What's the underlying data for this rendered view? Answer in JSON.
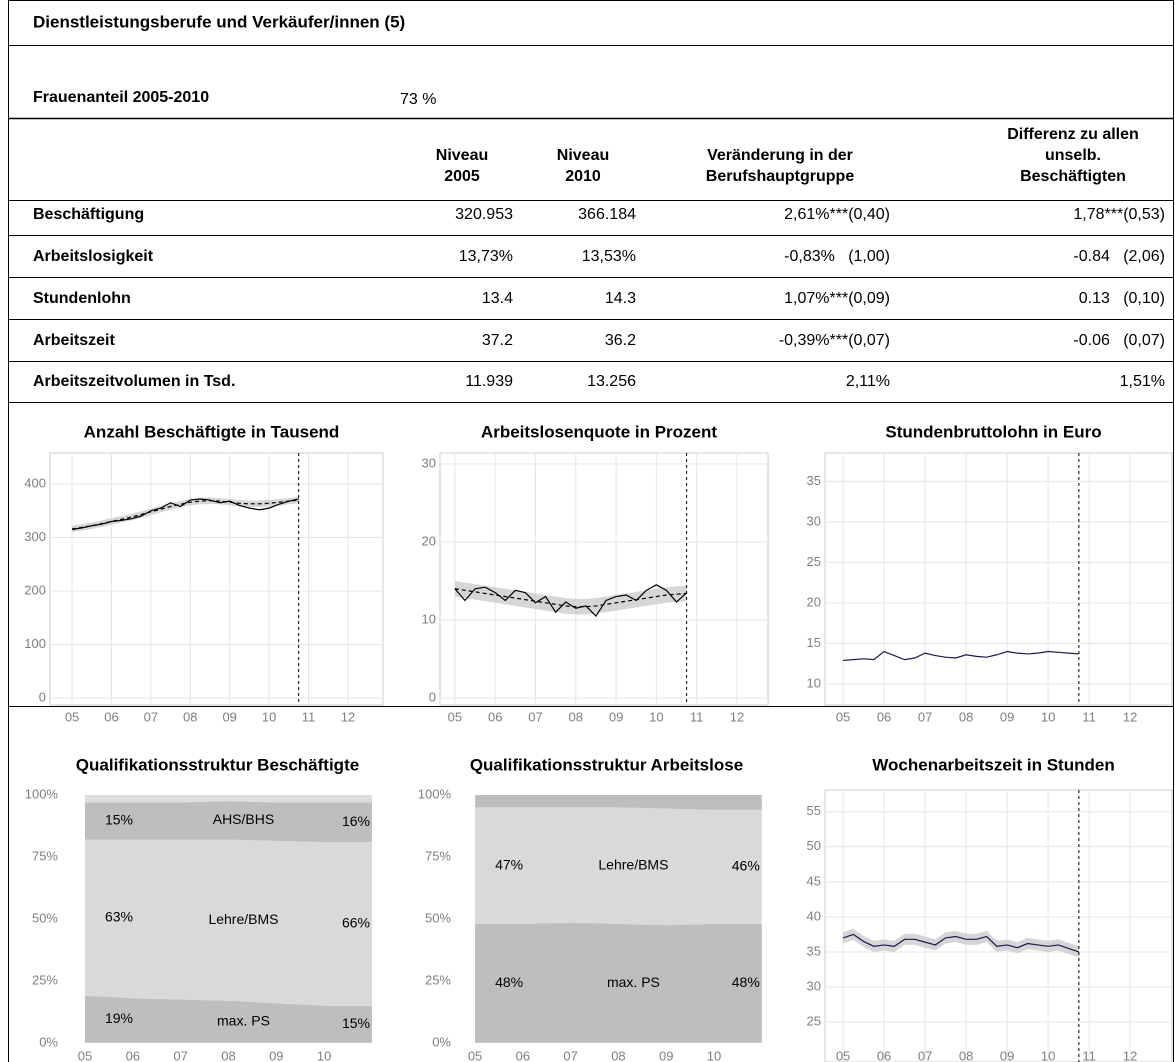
{
  "header": {
    "title": "Dienstleistungsberufe und Verkäufer/innen (5)"
  },
  "frauenanteil": {
    "label": "Frauenanteil 2005-2010",
    "value": "73 %"
  },
  "table": {
    "columns": [
      [
        "Niveau",
        "2005"
      ],
      [
        "Niveau",
        "2010"
      ],
      [
        "Veränderung in der",
        "Berufshauptgruppe"
      ],
      [
        "Differenz zu allen",
        "unselb.",
        "Beschäftigten"
      ]
    ],
    "rows": [
      [
        "Beschäftigung",
        "320.953",
        "366.184",
        "2,61%***(0,40)",
        "1,78***(0,53)"
      ],
      [
        "Arbeitslosigkeit",
        "13,73%",
        "13,53%",
        "-0,83%   (1,00)",
        "-0.84   (2,06)"
      ],
      [
        "Stundenlohn",
        "13.4",
        "14.3",
        "1,07%***(0,09)",
        "0.13   (0,10)"
      ],
      [
        "Arbeitszeit",
        "37.2",
        "36.2",
        "-0,39%***(0,07)",
        "-0.06   (0,07)"
      ],
      [
        "Arbeitszeitvolumen in Tsd.",
        "11.939",
        "13.256",
        "2,11%",
        "1,51%"
      ]
    ]
  },
  "chart_data": [
    {
      "type": "line",
      "title": "Anzahl Beschäftigte in Tausend",
      "x": [
        2005,
        2005.25,
        2005.5,
        2005.75,
        2006,
        2006.25,
        2006.5,
        2006.75,
        2007,
        2007.25,
        2007.5,
        2007.75,
        2008,
        2008.25,
        2008.5,
        2008.75,
        2009,
        2009.25,
        2009.5,
        2009.75,
        2010,
        2010.25,
        2010.5,
        2010.75
      ],
      "series": [
        {
          "color": "#000000",
          "dash": false,
          "values": [
            315,
            318,
            322,
            325,
            330,
            332,
            335,
            340,
            350,
            355,
            365,
            358,
            370,
            372,
            370,
            365,
            368,
            360,
            355,
            352,
            355,
            362,
            368,
            372
          ]
        },
        {
          "color": "#000000",
          "dash": true,
          "values": [
            316,
            319,
            322,
            326,
            330,
            334,
            338,
            343,
            348,
            353,
            358,
            362,
            366,
            368,
            369,
            368,
            366,
            364,
            363,
            363,
            364,
            366,
            368,
            370
          ]
        }
      ],
      "band": {
        "color": "#cccccc",
        "lower": [
          310,
          313,
          316,
          320,
          324,
          328,
          332,
          337,
          342,
          347,
          352,
          356,
          360,
          362,
          363,
          362,
          360,
          358,
          357,
          357,
          358,
          360,
          362,
          364
        ],
        "upper": [
          322,
          325,
          328,
          332,
          336,
          340,
          344,
          349,
          354,
          359,
          364,
          368,
          372,
          374,
          375,
          374,
          372,
          370,
          369,
          369,
          370,
          372,
          374,
          376
        ]
      },
      "xlim": [
        2004.44,
        2012.89
      ],
      "ylim": [
        -13,
        458
      ],
      "xticks": [
        {
          "value": 2005,
          "label": "05"
        },
        {
          "value": 2006,
          "label": "06"
        },
        {
          "value": 2007,
          "label": "07"
        },
        {
          "value": 2008,
          "label": "08"
        },
        {
          "value": 2009,
          "label": "09"
        },
        {
          "value": 2010,
          "label": "10"
        },
        {
          "value": 2011,
          "label": "11"
        },
        {
          "value": 2012,
          "label": "12"
        }
      ],
      "yticks": [
        0,
        100,
        200,
        300,
        400
      ],
      "vline": 2010.75,
      "grid": true
    },
    {
      "type": "line",
      "title": "Arbeitslosenquote in Prozent",
      "x": [
        2005,
        2005.25,
        2005.5,
        2005.75,
        2006,
        2006.25,
        2006.5,
        2006.75,
        2007,
        2007.25,
        2007.5,
        2007.75,
        2008,
        2008.25,
        2008.5,
        2008.75,
        2009,
        2009.25,
        2009.5,
        2009.75,
        2010,
        2010.25,
        2010.5,
        2010.75
      ],
      "series": [
        {
          "color": "#000000",
          "dash": false,
          "values": [
            14,
            12.5,
            14,
            14.2,
            13.5,
            12.5,
            13.8,
            13.5,
            12.2,
            13,
            11,
            12.3,
            11.5,
            11.8,
            10.5,
            12.5,
            13,
            13.2,
            12.5,
            13.8,
            14.5,
            13.8,
            12.3,
            13.5
          ]
        },
        {
          "color": "#000000",
          "dash": true,
          "values": [
            14,
            13.8,
            13.6,
            13.4,
            13.2,
            13,
            12.8,
            12.6,
            12.4,
            12.2,
            12,
            11.8,
            11.7,
            11.7,
            11.8,
            12,
            12.2,
            12.4,
            12.6,
            12.8,
            13,
            13.2,
            13.3,
            13.4
          ]
        }
      ],
      "band": {
        "color": "#cccccc",
        "lower": [
          13,
          12.8,
          12.6,
          12.4,
          12.2,
          12,
          11.8,
          11.6,
          11.4,
          11.2,
          11,
          10.8,
          10.7,
          10.7,
          10.8,
          11,
          11.2,
          11.4,
          11.6,
          11.8,
          12,
          12.2,
          12.3,
          12.4
        ],
        "upper": [
          15,
          14.8,
          14.6,
          14.4,
          14.2,
          14,
          13.8,
          13.6,
          13.4,
          13.2,
          13,
          12.8,
          12.7,
          12.7,
          12.8,
          13,
          13.2,
          13.4,
          13.6,
          13.8,
          14,
          14.2,
          14.3,
          14.4
        ]
      },
      "xlim": [
        2004.63,
        2012.77
      ],
      "ylim": [
        -0.9,
        31.4
      ],
      "xticks": [
        {
          "value": 2005,
          "label": "05"
        },
        {
          "value": 2006,
          "label": "06"
        },
        {
          "value": 2007,
          "label": "07"
        },
        {
          "value": 2008,
          "label": "08"
        },
        {
          "value": 2009,
          "label": "09"
        },
        {
          "value": 2010,
          "label": "10"
        },
        {
          "value": 2011,
          "label": "11"
        },
        {
          "value": 2012,
          "label": "12"
        }
      ],
      "yticks": [
        0,
        10,
        20,
        30
      ],
      "vline": 2010.75,
      "grid": true
    },
    {
      "type": "line",
      "title": "Stundenbruttolohn in Euro",
      "x": [
        2005,
        2005.25,
        2005.5,
        2005.75,
        2006,
        2006.25,
        2006.5,
        2006.75,
        2007,
        2007.25,
        2007.5,
        2007.75,
        2008,
        2008.25,
        2008.5,
        2008.75,
        2009,
        2009.25,
        2009.5,
        2009.75,
        2010,
        2010.25,
        2010.5,
        2010.75
      ],
      "series": [
        {
          "color": "#1a1a4e",
          "dash": false,
          "values": [
            12.9,
            13,
            13.1,
            13,
            14,
            13.5,
            13,
            13.2,
            13.8,
            13.5,
            13.3,
            13.2,
            13.6,
            13.4,
            13.3,
            13.6,
            14,
            13.8,
            13.7,
            13.8,
            14,
            13.9,
            13.8,
            13.7
          ]
        }
      ],
      "xlim": [
        2004.56,
        2013.02
      ],
      "ylim": [
        7.4,
        38.5
      ],
      "xticks": [
        {
          "value": 2005,
          "label": "05"
        },
        {
          "value": 2006,
          "label": "06"
        },
        {
          "value": 2007,
          "label": "07"
        },
        {
          "value": 2008,
          "label": "08"
        },
        {
          "value": 2009,
          "label": "09"
        },
        {
          "value": 2010,
          "label": "10"
        },
        {
          "value": 2011,
          "label": "11"
        },
        {
          "value": 2012,
          "label": "12"
        }
      ],
      "yticks": [
        10,
        15,
        20,
        25,
        30,
        35
      ],
      "vline": 2010.75,
      "grid": true
    },
    {
      "type": "area",
      "title": "Qualifikationsstruktur Beschäftigte",
      "x": [
        2005,
        2006,
        2007,
        2008,
        2009,
        2010,
        2011
      ],
      "series": [
        {
          "name": "max. PS",
          "color": "#bebebe",
          "values": [
            19,
            18,
            17.5,
            17,
            16,
            15,
            15
          ],
          "value_labels": [
            "19%",
            null,
            null,
            null,
            null,
            null,
            "15%"
          ]
        },
        {
          "name": "Lehre/BMS",
          "color": "#d9d9d9",
          "values": [
            63,
            64,
            64.5,
            65,
            65.5,
            66,
            66
          ],
          "value_labels": [
            "63%",
            null,
            null,
            null,
            null,
            null,
            "66%"
          ]
        },
        {
          "name": "AHS/BHS",
          "color": "#bebebe",
          "values": [
            15,
            15,
            15,
            15.5,
            15.5,
            16,
            16
          ],
          "value_labels": [
            "15%",
            null,
            null,
            null,
            null,
            null,
            "16%"
          ]
        },
        {
          "color": "#dedede",
          "values": [
            3,
            3,
            3,
            2.5,
            3,
            3,
            3
          ]
        }
      ],
      "xlim": [
        2004.52,
        2011.23
      ],
      "ylim": [
        -7.7,
        102
      ],
      "xticks": [
        {
          "value": 2005,
          "label": "05"
        },
        {
          "value": 2006,
          "label": "06"
        },
        {
          "value": 2007,
          "label": "07"
        },
        {
          "value": 2008,
          "label": "08"
        },
        {
          "value": 2009,
          "label": "09"
        },
        {
          "value": 2010,
          "label": "10"
        }
      ],
      "yticks": [
        {
          "value": 0,
          "label": "0%"
        },
        {
          "value": 25,
          "label": "25%"
        },
        {
          "value": 50,
          "label": "50%"
        },
        {
          "value": 75,
          "label": "75%"
        },
        {
          "value": 100,
          "label": "100%"
        }
      ],
      "grid": false
    },
    {
      "type": "area",
      "title": "Qualifikationsstruktur Arbeitslose",
      "x": [
        2005,
        2006,
        2007,
        2008,
        2009,
        2010,
        2011
      ],
      "series": [
        {
          "name": "max. PS",
          "color": "#bebebe",
          "values": [
            48,
            48,
            48.5,
            48,
            47.5,
            48,
            48
          ],
          "value_labels": [
            "48%",
            null,
            null,
            null,
            null,
            null,
            "48%"
          ]
        },
        {
          "name": "Lehre/BMS",
          "color": "#d9d9d9",
          "values": [
            47,
            47,
            46.5,
            47,
            47,
            46,
            46
          ],
          "value_labels": [
            "47%",
            null,
            null,
            null,
            null,
            null,
            "46%"
          ]
        },
        {
          "color": "#bebebe",
          "values": [
            5,
            5,
            5,
            5,
            5.5,
            6,
            6
          ]
        }
      ],
      "xlim": [
        2004.58,
        2011.13
      ],
      "ylim": [
        -7.7,
        102
      ],
      "xticks": [
        {
          "value": 2005,
          "label": "05"
        },
        {
          "value": 2006,
          "label": "06"
        },
        {
          "value": 2007,
          "label": "07"
        },
        {
          "value": 2008,
          "label": "08"
        },
        {
          "value": 2009,
          "label": "09"
        },
        {
          "value": 2010,
          "label": "10"
        }
      ],
      "yticks": [
        {
          "value": 0,
          "label": "0%"
        },
        {
          "value": 25,
          "label": "25%"
        },
        {
          "value": 50,
          "label": "50%"
        },
        {
          "value": 75,
          "label": "75%"
        },
        {
          "value": 100,
          "label": "100%"
        }
      ],
      "grid": false
    },
    {
      "type": "line",
      "title": "Wochenarbeitszeit in Stunden",
      "x": [
        2005,
        2005.25,
        2005.5,
        2005.75,
        2006,
        2006.25,
        2006.5,
        2006.75,
        2007,
        2007.25,
        2007.5,
        2007.75,
        2008,
        2008.25,
        2008.5,
        2008.75,
        2009,
        2009.25,
        2009.5,
        2009.75,
        2010,
        2010.25,
        2010.5,
        2010.75
      ],
      "series": [
        {
          "color": "#1a1a4e",
          "dash": false,
          "values": [
            37,
            37.5,
            36.5,
            35.8,
            36,
            35.8,
            36.8,
            36.8,
            36.4,
            36,
            37,
            37.2,
            36.8,
            36.8,
            37.2,
            35.8,
            36,
            35.6,
            36.2,
            36,
            35.8,
            36,
            35.5,
            35
          ]
        }
      ],
      "band": {
        "color": "#cccccc",
        "lower": [
          36.2,
          36.7,
          35.7,
          35,
          35.2,
          35,
          36,
          36,
          35.6,
          35.2,
          36.2,
          36.4,
          36,
          36,
          36.4,
          35,
          35.2,
          34.8,
          35.4,
          35.2,
          35,
          35.2,
          34.7,
          34.2
        ],
        "upper": [
          37.8,
          38.3,
          37.3,
          36.6,
          36.8,
          36.6,
          37.6,
          37.6,
          37.2,
          36.8,
          37.8,
          38,
          37.6,
          37.6,
          38,
          36.6,
          36.8,
          36.4,
          37,
          36.8,
          36.6,
          36.8,
          36.3,
          35.8
        ]
      },
      "xlim": [
        2004.56,
        2013.02
      ],
      "ylim": [
        19.3,
        58.1
      ],
      "xticks": [
        {
          "value": 2005,
          "label": "05"
        },
        {
          "value": 2006,
          "label": "06"
        },
        {
          "value": 2007,
          "label": "07"
        },
        {
          "value": 2008,
          "label": "08"
        },
        {
          "value": 2009,
          "label": "09"
        },
        {
          "value": 2010,
          "label": "10"
        },
        {
          "value": 2011,
          "label": "11"
        },
        {
          "value": 2012,
          "label": "12"
        }
      ],
      "yticks": [
        25,
        30,
        35,
        40,
        45,
        50,
        55
      ],
      "vline": 2010.75,
      "grid": true
    }
  ]
}
